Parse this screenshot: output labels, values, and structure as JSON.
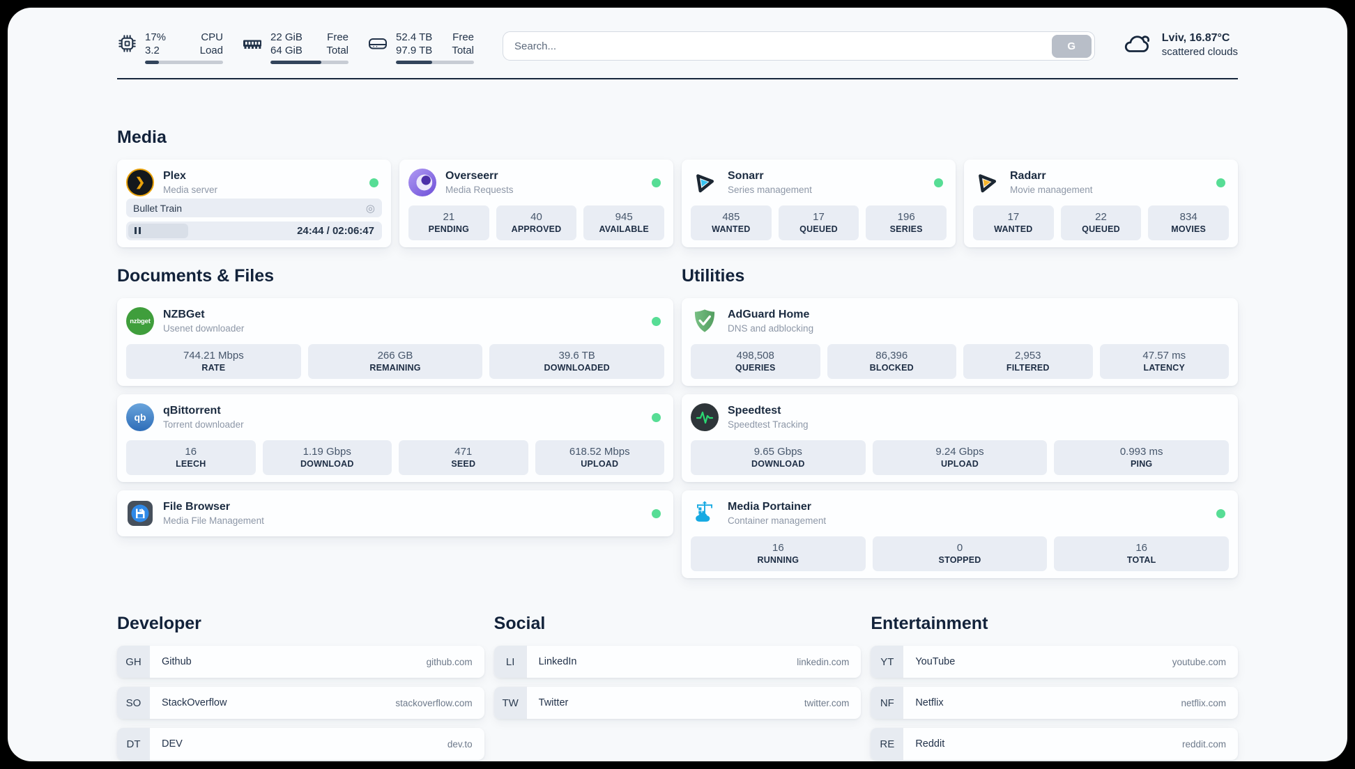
{
  "header": {
    "system_widgets": [
      {
        "icon": "cpu-icon",
        "col1": [
          "17%",
          "3.2"
        ],
        "col2": [
          "CPU",
          "Load"
        ],
        "progress_pct": 18
      },
      {
        "icon": "ram-icon",
        "col1": [
          "22 GiB",
          "64 GiB"
        ],
        "col2": [
          "Free",
          "Total"
        ],
        "progress_pct": 65
      },
      {
        "icon": "disk-icon",
        "col1": [
          "52.4 TB",
          "97.9 TB"
        ],
        "col2": [
          "Free",
          "Total"
        ],
        "progress_pct": 46
      }
    ],
    "search": {
      "placeholder": "Search...",
      "button_label": "G"
    },
    "weather": {
      "icon": "cloud-icon",
      "line1": "Lviv, 16.87°C",
      "line2": "scattered clouds"
    }
  },
  "groups": {
    "media": {
      "title": "Media",
      "services": [
        {
          "name": "Plex",
          "desc": "Media server",
          "icon": "plex-icon",
          "status_dot": true,
          "now_playing": {
            "title": "Bullet Train",
            "time_text": "24:44 / 02:06:47"
          }
        },
        {
          "name": "Overseerr",
          "desc": "Media Requests",
          "icon": "overseerr-icon",
          "status_dot": true,
          "stats": [
            {
              "value": "21",
              "label": "PENDING"
            },
            {
              "value": "40",
              "label": "APPROVED"
            },
            {
              "value": "945",
              "label": "AVAILABLE"
            }
          ]
        },
        {
          "name": "Sonarr",
          "desc": "Series management",
          "icon": "sonarr-icon",
          "status_dot": true,
          "stats": [
            {
              "value": "485",
              "label": "WANTED"
            },
            {
              "value": "17",
              "label": "QUEUED"
            },
            {
              "value": "196",
              "label": "SERIES"
            }
          ]
        },
        {
          "name": "Radarr",
          "desc": "Movie management",
          "icon": "radarr-icon",
          "status_dot": true,
          "stats": [
            {
              "value": "17",
              "label": "WANTED"
            },
            {
              "value": "22",
              "label": "QUEUED"
            },
            {
              "value": "834",
              "label": "MOVIES"
            }
          ]
        }
      ]
    },
    "documents": {
      "title": "Documents & Files",
      "services": [
        {
          "name": "NZBGet",
          "desc": "Usenet downloader",
          "icon": "nzbget-icon",
          "status_dot": true,
          "stats": [
            {
              "value": "744.21 Mbps",
              "label": "RATE"
            },
            {
              "value": "266 GB",
              "label": "REMAINING"
            },
            {
              "value": "39.6 TB",
              "label": "DOWNLOADED"
            }
          ]
        },
        {
          "name": "qBittorrent",
          "desc": "Torrent downloader",
          "icon": "qbittorrent-icon",
          "status_dot": true,
          "stats": [
            {
              "value": "16",
              "label": "LEECH"
            },
            {
              "value": "1.19 Gbps",
              "label": "DOWNLOAD"
            },
            {
              "value": "471",
              "label": "SEED"
            },
            {
              "value": "618.52 Mbps",
              "label": "UPLOAD"
            }
          ]
        },
        {
          "name": "File Browser",
          "desc": "Media File Management",
          "icon": "filebrowser-icon",
          "status_dot": true
        }
      ]
    },
    "utilities": {
      "title": "Utilities",
      "services": [
        {
          "name": "AdGuard Home",
          "desc": "DNS and adblocking",
          "icon": "adguard-icon",
          "status_dot": false,
          "stats": [
            {
              "value": "498,508",
              "label": "QUERIES"
            },
            {
              "value": "86,396",
              "label": "BLOCKED"
            },
            {
              "value": "2,953",
              "label": "FILTERED"
            },
            {
              "value": "47.57 ms",
              "label": "LATENCY"
            }
          ]
        },
        {
          "name": "Speedtest",
          "desc": "Speedtest Tracking",
          "icon": "speedtest-icon",
          "status_dot": false,
          "stats": [
            {
              "value": "9.65 Gbps",
              "label": "DOWNLOAD"
            },
            {
              "value": "9.24 Gbps",
              "label": "UPLOAD"
            },
            {
              "value": "0.993 ms",
              "label": "PING"
            }
          ]
        },
        {
          "name": "Media Portainer",
          "desc": "Container management",
          "icon": "portainer-icon",
          "status_dot": true,
          "stats": [
            {
              "value": "16",
              "label": "RUNNING"
            },
            {
              "value": "0",
              "label": "STOPPED"
            },
            {
              "value": "16",
              "label": "TOTAL"
            }
          ]
        }
      ]
    }
  },
  "bookmarks": [
    {
      "title": "Developer",
      "items": [
        {
          "abbr": "GH",
          "name": "Github",
          "url": "github.com"
        },
        {
          "abbr": "SO",
          "name": "StackOverflow",
          "url": "stackoverflow.com"
        },
        {
          "abbr": "DT",
          "name": "DEV",
          "url": "dev.to"
        }
      ]
    },
    {
      "title": "Social",
      "items": [
        {
          "abbr": "LI",
          "name": "LinkedIn",
          "url": "linkedin.com"
        },
        {
          "abbr": "TW",
          "name": "Twitter",
          "url": "twitter.com"
        }
      ]
    },
    {
      "title": "Entertainment",
      "items": [
        {
          "abbr": "YT",
          "name": "YouTube",
          "url": "youtube.com"
        },
        {
          "abbr": "NF",
          "name": "Netflix",
          "url": "netflix.com"
        },
        {
          "abbr": "RE",
          "name": "Reddit",
          "url": "reddit.com"
        }
      ]
    }
  ],
  "colors": {
    "status_green": "#57dd95",
    "text_dark": "#1b2b40",
    "text_muted": "#8d97a7",
    "tile_bg": "#e9edf4"
  }
}
